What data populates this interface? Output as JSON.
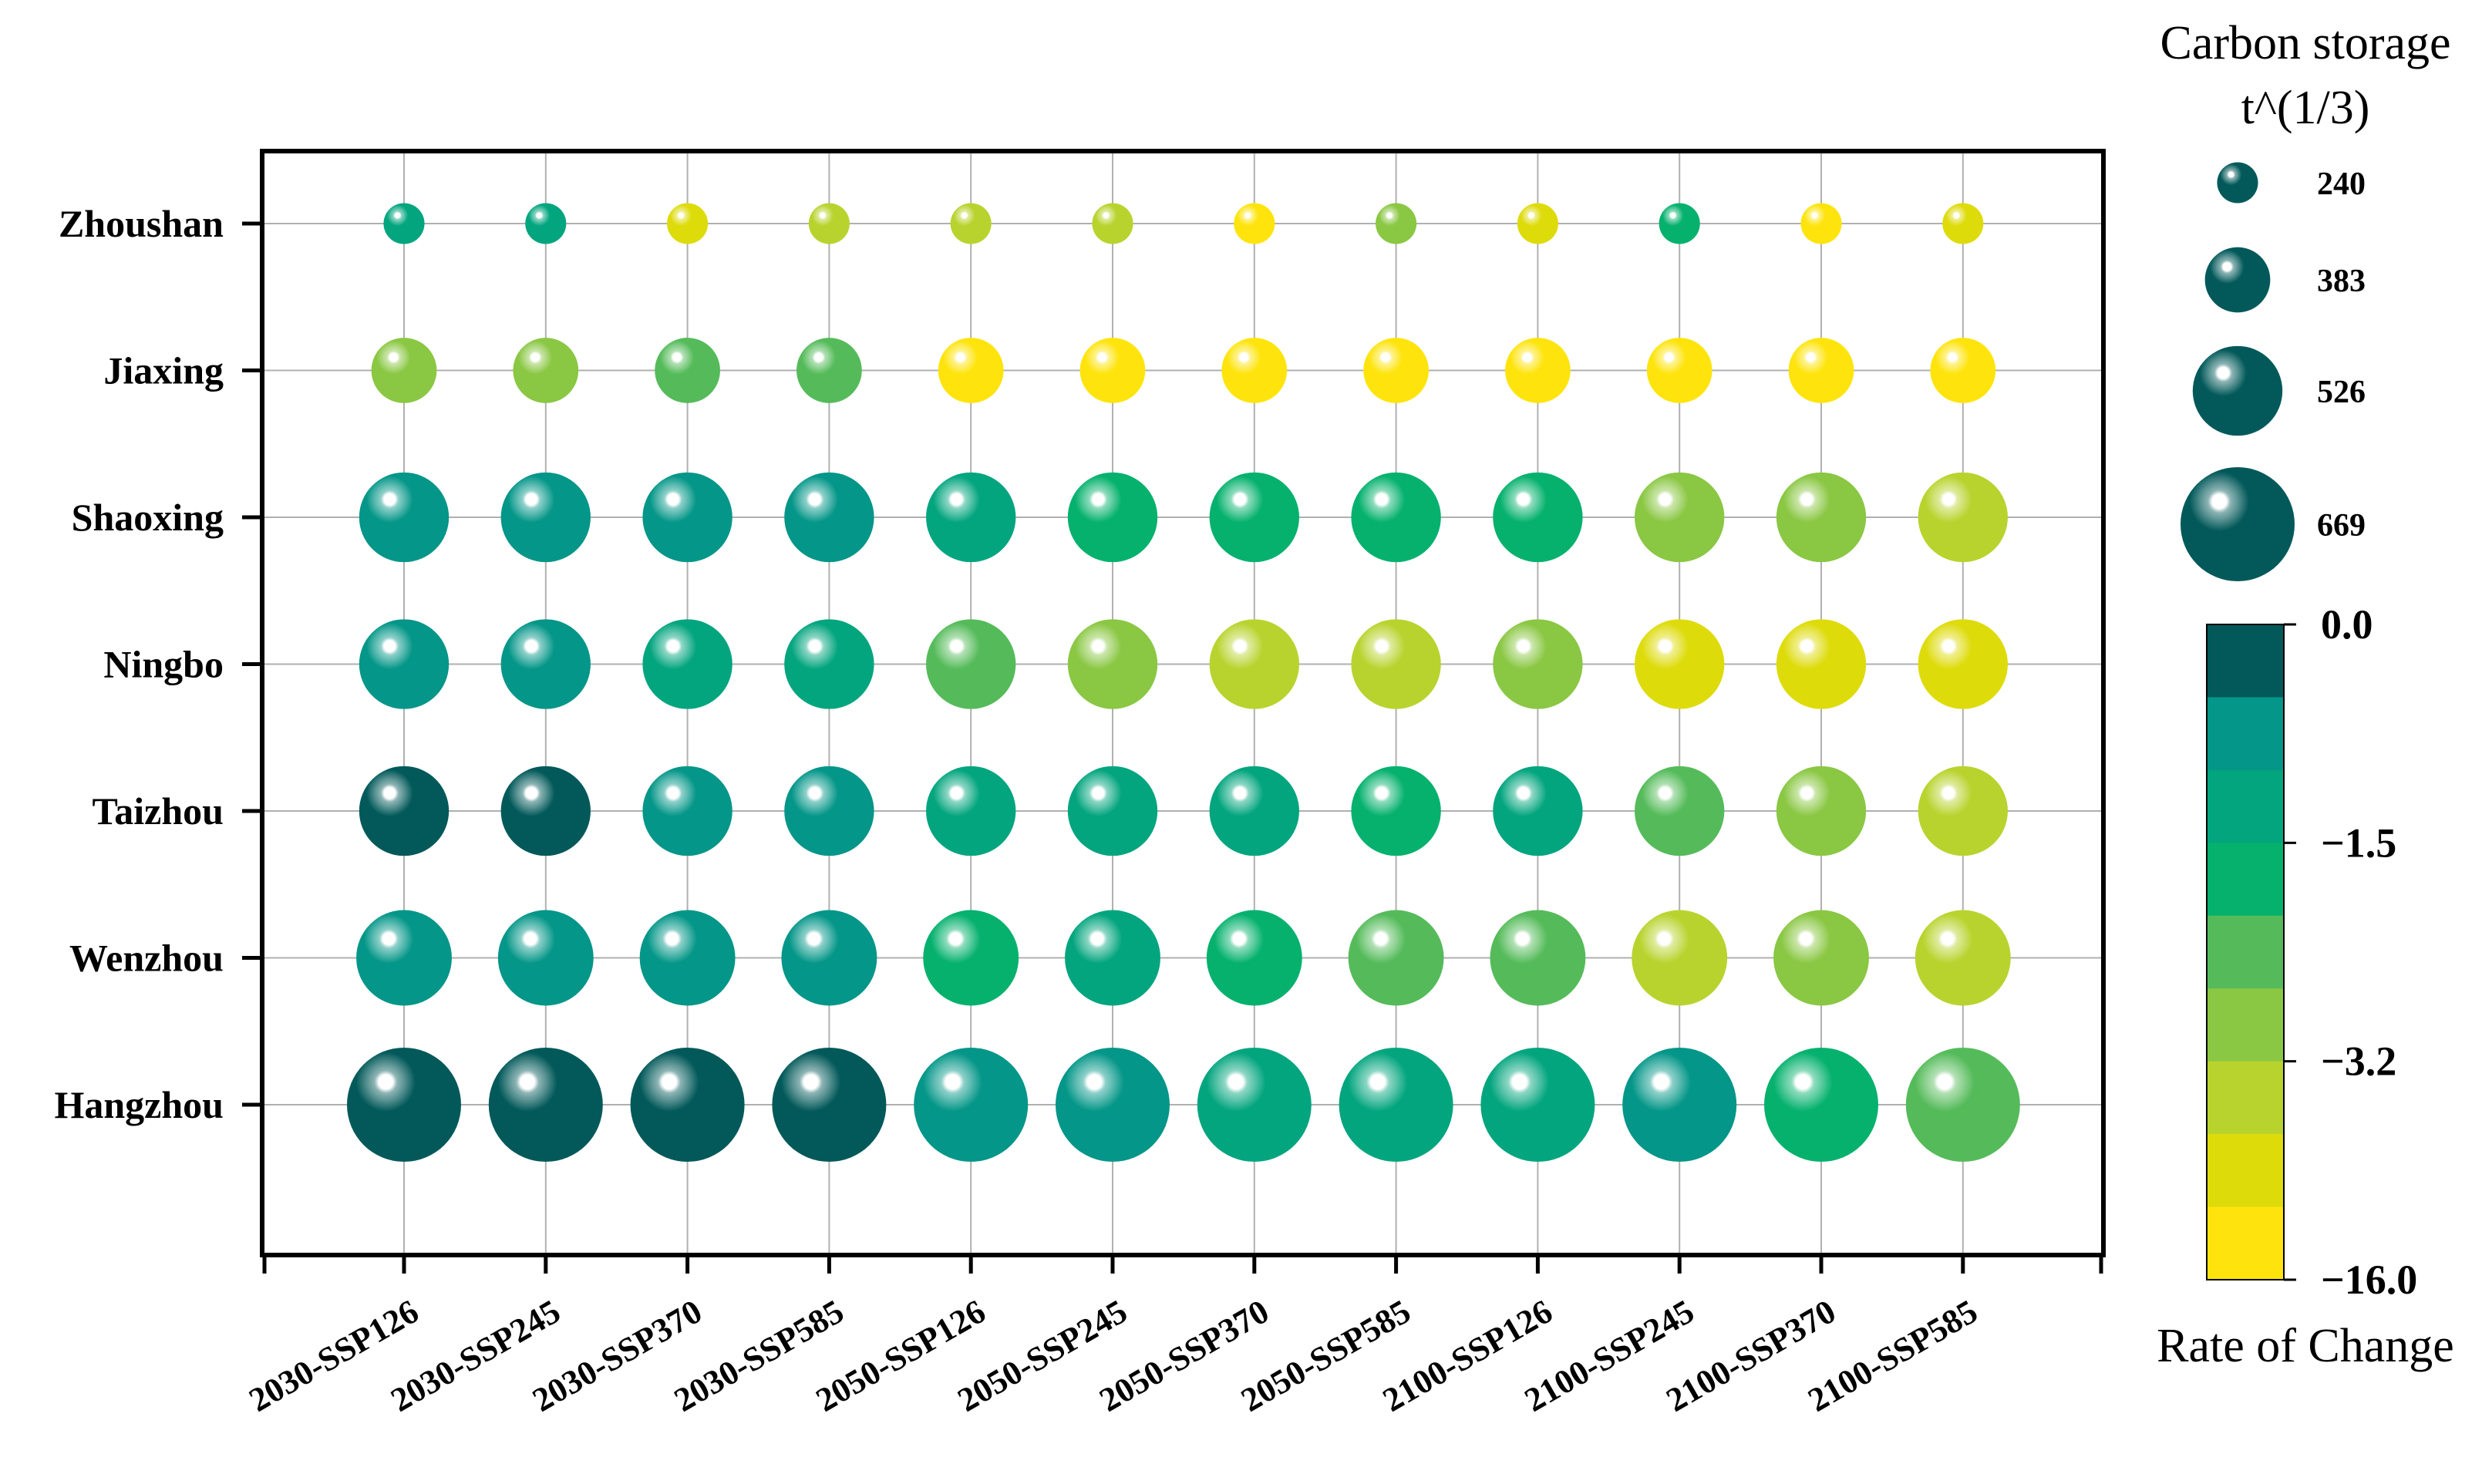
{
  "chart_data": {
    "type": "scatter",
    "x_categories": [
      "2030-SSP126",
      "2030-SSP245",
      "2030-SSP370",
      "2030-SSP585",
      "2050-SSP126",
      "2050-SSP245",
      "2050-SSP370",
      "2050-SSP585",
      "2100-SSP126",
      "2100-SSP245",
      "2100-SSP370",
      "2100-SSP585"
    ],
    "y_categories": [
      "Zhoushan",
      "Jiaxing",
      "Shaoxing",
      "Ningbo",
      "Taizhou",
      "Wenzhou",
      "Hangzhou"
    ],
    "size_legend": {
      "title_line1": "Carbon storage",
      "title_line2": "t^(1/3)",
      "entries": [
        {
          "value": 240,
          "label": "240"
        },
        {
          "value": 383,
          "label": "383"
        },
        {
          "value": 526,
          "label": "526"
        },
        {
          "value": 669,
          "label": "669"
        }
      ]
    },
    "color_legend": {
      "title": "Rate of Change",
      "tick_labels": [
        "0.0",
        "−1.5",
        "−3.2",
        "−16.0"
      ],
      "bins_top_to_bottom": [
        "#03595a",
        "#049688",
        "#03a57e",
        "#05b16d",
        "#55bb5a",
        "#8ac743",
        "#b9d32e",
        "#dedb0b",
        "#fee40c"
      ]
    },
    "rows": [
      {
        "name": "Zhoushan",
        "size": [
          240,
          240,
          240,
          240,
          240,
          240,
          240,
          240,
          240,
          240,
          240,
          240
        ],
        "color": [
          "#03a57e",
          "#03a57e",
          "#dedb0b",
          "#b9d32e",
          "#b9d32e",
          "#b9d32e",
          "#fee40c",
          "#8ac743",
          "#dedb0b",
          "#05b16d",
          "#fee40c",
          "#dedb0b"
        ]
      },
      {
        "name": "Jiaxing",
        "size": [
          383,
          383,
          383,
          383,
          383,
          383,
          383,
          383,
          383,
          383,
          383,
          383
        ],
        "color": [
          "#8ac743",
          "#8ac743",
          "#55bb5a",
          "#55bb5a",
          "#fee40c",
          "#fee40c",
          "#fee40c",
          "#fee40c",
          "#fee40c",
          "#fee40c",
          "#fee40c",
          "#fee40c"
        ]
      },
      {
        "name": "Shaoxing",
        "size": [
          526,
          526,
          526,
          526,
          526,
          526,
          526,
          526,
          526,
          526,
          526,
          526
        ],
        "color": [
          "#049688",
          "#049688",
          "#049688",
          "#049688",
          "#03a57e",
          "#05b16d",
          "#05b16d",
          "#05b16d",
          "#05b16d",
          "#8ac743",
          "#8ac743",
          "#b9d32e"
        ]
      },
      {
        "name": "Ningbo",
        "size": [
          526,
          526,
          526,
          526,
          526,
          526,
          526,
          526,
          526,
          526,
          526,
          526
        ],
        "color": [
          "#049688",
          "#049688",
          "#03a57e",
          "#03a57e",
          "#55bb5a",
          "#8ac743",
          "#b9d32e",
          "#b9d32e",
          "#8ac743",
          "#dedb0b",
          "#dedb0b",
          "#dedb0b"
        ]
      },
      {
        "name": "Taizhou",
        "size": [
          526,
          526,
          526,
          526,
          526,
          526,
          526,
          526,
          526,
          526,
          526,
          526
        ],
        "color": [
          "#03595a",
          "#03595a",
          "#049688",
          "#049688",
          "#03a57e",
          "#03a57e",
          "#03a57e",
          "#05b16d",
          "#03a57e",
          "#55bb5a",
          "#8ac743",
          "#b9d32e"
        ]
      },
      {
        "name": "Wenzhou",
        "size": [
          560,
          560,
          560,
          560,
          560,
          560,
          560,
          560,
          560,
          560,
          560,
          560
        ],
        "color": [
          "#049688",
          "#049688",
          "#049688",
          "#049688",
          "#05b16d",
          "#03a57e",
          "#05b16d",
          "#55bb5a",
          "#55bb5a",
          "#b9d32e",
          "#8ac743",
          "#b9d32e"
        ]
      },
      {
        "name": "Hangzhou",
        "size": [
          669,
          669,
          669,
          669,
          669,
          669,
          669,
          669,
          669,
          669,
          669,
          669
        ],
        "color": [
          "#03595a",
          "#03595a",
          "#03595a",
          "#03595a",
          "#049688",
          "#049688",
          "#03a57e",
          "#03a57e",
          "#03a57e",
          "#049688",
          "#05b16d",
          "#55bb5a"
        ]
      }
    ],
    "grid": true
  }
}
